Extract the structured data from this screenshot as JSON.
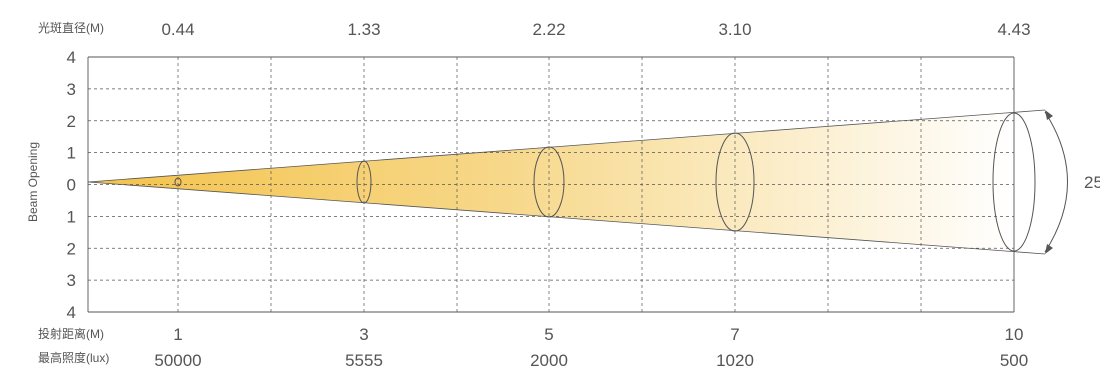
{
  "labels": {
    "diameter_row": "光斑直径(M)",
    "distance_row": "投射距离(M)",
    "lux_row": "最高照度(lux)",
    "y_axis": "Beam Opening",
    "angle": "25"
  },
  "colors": {
    "beam_start": "#f3c24a",
    "beam_end": "#ffffff",
    "grid": "#555555",
    "text": "#555555"
  },
  "chart_data": {
    "type": "diagram",
    "y_ticks": [
      "4",
      "3",
      "2",
      "1",
      "0",
      "1",
      "2",
      "3",
      "4"
    ],
    "points": [
      {
        "distance": "1",
        "diameter": "0.44",
        "lux": "50000"
      },
      {
        "distance": "3",
        "diameter": "1.33",
        "lux": "5555"
      },
      {
        "distance": "5",
        "diameter": "2.22",
        "lux": "2000"
      },
      {
        "distance": "7",
        "diameter": "3.10",
        "lux": "1020"
      },
      {
        "distance": "10",
        "diameter": "4.43",
        "lux": "500"
      }
    ]
  }
}
